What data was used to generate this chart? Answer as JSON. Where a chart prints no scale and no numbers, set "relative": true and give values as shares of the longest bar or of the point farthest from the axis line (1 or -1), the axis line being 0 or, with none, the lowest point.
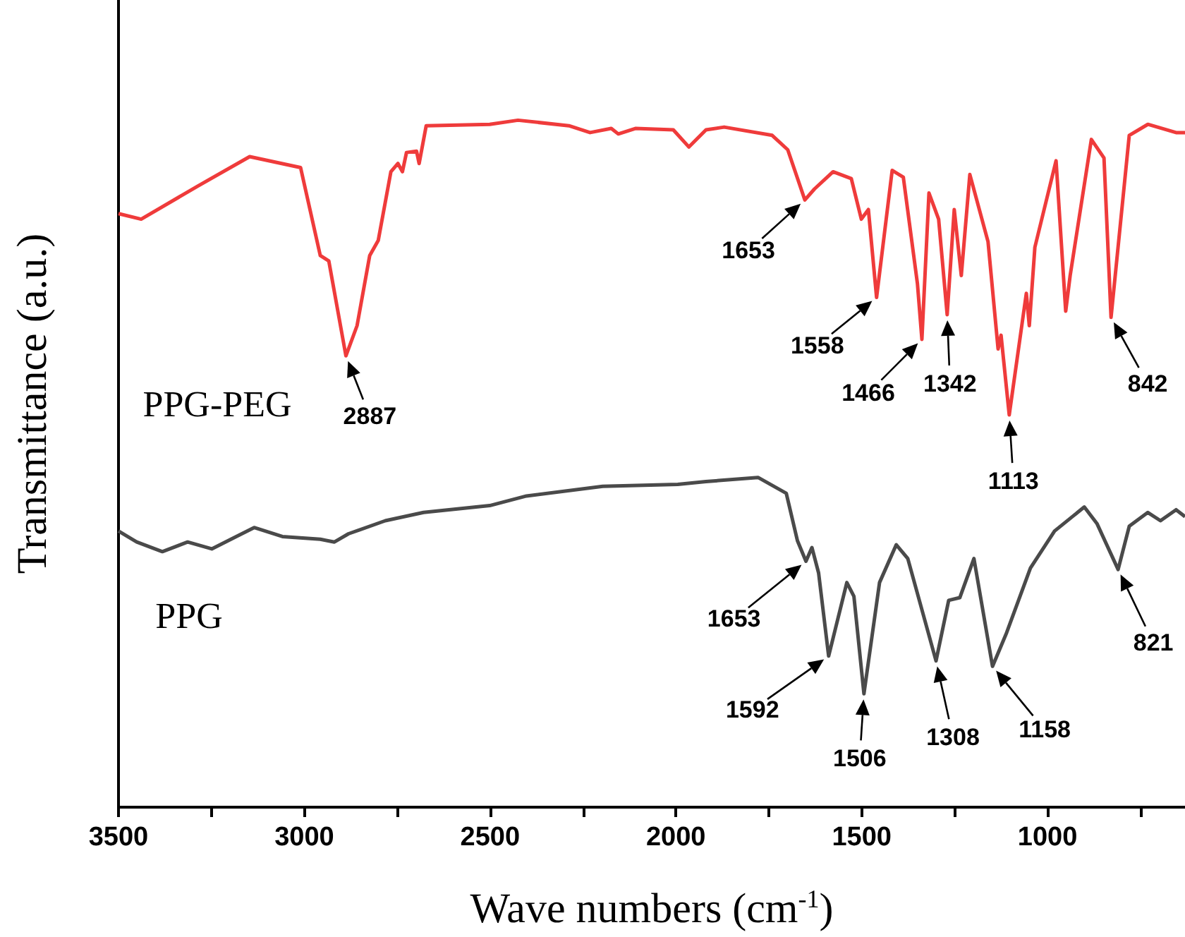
{
  "chart_data": {
    "type": "line",
    "xlabel": "Wave numbers (cm$^{-1}$)",
    "ylabel": "Transmittance (a.u.)",
    "relative": true,
    "xlim": [
      3500,
      630
    ],
    "xticks": [
      3500,
      {
        "value": 3250,
        "label": null
      },
      3000,
      {
        "value": 2750,
        "label": null
      },
      2500,
      {
        "value": 2250,
        "label": null
      },
      2000,
      {
        "value": 1750,
        "label": null
      },
      1500,
      {
        "value": 1250,
        "label": null
      },
      1000,
      {
        "value": 750,
        "label": null
      }
    ],
    "grid": false,
    "legend": false,
    "marker": "none",
    "line_style": "solid",
    "series": [
      {
        "name": "PPG-PEG",
        "color": "#ef3b3b",
        "x": [
          3500,
          3439,
          3287,
          3147,
          3010,
          2957,
          2934,
          2888,
          2858,
          2824,
          2801,
          2767,
          2748,
          2736,
          2725,
          2698,
          2691,
          2672,
          2501,
          2425,
          2288,
          2231,
          2174,
          2155,
          2109,
          2007,
          1965,
          1919,
          1870,
          1741,
          1699,
          1653,
          1627,
          1577,
          1528,
          1501,
          1482,
          1460,
          1418,
          1388,
          1350,
          1338,
          1319,
          1293,
          1270,
          1251,
          1232,
          1209,
          1160,
          1133,
          1125,
          1103,
          1057,
          1049,
          1034,
          977,
          951,
          939,
          882,
          848,
          829,
          780,
          730,
          654,
          630
        ],
        "values": [
          0.864,
          0.856,
          0.904,
          0.947,
          0.931,
          0.803,
          0.795,
          0.657,
          0.701,
          0.803,
          0.825,
          0.925,
          0.937,
          0.925,
          0.953,
          0.955,
          0.937,
          0.992,
          0.994,
          1,
          0.992,
          0.982,
          0.988,
          0.98,
          0.988,
          0.986,
          0.961,
          0.986,
          0.99,
          0.978,
          0.957,
          0.884,
          0.9,
          0.925,
          0.915,
          0.856,
          0.87,
          0.742,
          0.927,
          0.917,
          0.762,
          0.681,
          0.894,
          0.856,
          0.717,
          0.87,
          0.774,
          0.921,
          0.823,
          0.667,
          0.687,
          0.571,
          0.748,
          0.701,
          0.815,
          0.941,
          0.722,
          0.774,
          0.972,
          0.945,
          0.713,
          0.978,
          0.994,
          0.982,
          0.982
        ]
      },
      {
        "name": "PPG",
        "color": "#4a4a4a",
        "x": [
          3500,
          3451,
          3382,
          3314,
          3249,
          3135,
          3059,
          2957,
          2919,
          2881,
          2782,
          2679,
          2501,
          2402,
          2197,
          1995,
          1919,
          1779,
          1703,
          1673,
          1650,
          1634,
          1616,
          1589,
          1540,
          1521,
          1494,
          1452,
          1407,
          1376,
          1300,
          1266,
          1236,
          1198,
          1148,
          1110,
          1046,
          981,
          901,
          867,
          810,
          780,
          730,
          696,
          654,
          630
        ],
        "values": [
          0.402,
          0.386,
          0.372,
          0.386,
          0.376,
          0.407,
          0.394,
          0.39,
          0.386,
          0.398,
          0.417,
          0.429,
          0.439,
          0.453,
          0.467,
          0.47,
          0.474,
          0.48,
          0.457,
          0.388,
          0.358,
          0.378,
          0.341,
          0.22,
          0.327,
          0.307,
          0.165,
          0.327,
          0.382,
          0.362,
          0.213,
          0.301,
          0.305,
          0.362,
          0.205,
          0.254,
          0.348,
          0.402,
          0.437,
          0.413,
          0.346,
          0.409,
          0.429,
          0.417,
          0.433,
          0.423
        ]
      }
    ],
    "annotations": [
      {
        "text": "2887",
        "x": 2888,
        "y": 0.657
      },
      {
        "text": "1653",
        "x": 1653,
        "y": 0.884
      },
      {
        "text": "1558",
        "x": 1460,
        "y": 0.742
      },
      {
        "text": "1466",
        "x": 1338,
        "y": 0.681
      },
      {
        "text": "1342",
        "x": 1270,
        "y": 0.717
      },
      {
        "text": "1113",
        "x": 1103,
        "y": 0.571
      },
      {
        "text": "842",
        "x": 829,
        "y": 0.713
      },
      {
        "text": "1653",
        "x": 1650,
        "y": 0.358
      },
      {
        "text": "1592",
        "x": 1589,
        "y": 0.22
      },
      {
        "text": "1506",
        "x": 1494,
        "y": 0.165
      },
      {
        "text": "1308",
        "x": 1300,
        "y": 0.213
      },
      {
        "text": "1158",
        "x": 1148,
        "y": 0.205
      },
      {
        "text": "821",
        "x": 810,
        "y": 0.346
      }
    ]
  }
}
